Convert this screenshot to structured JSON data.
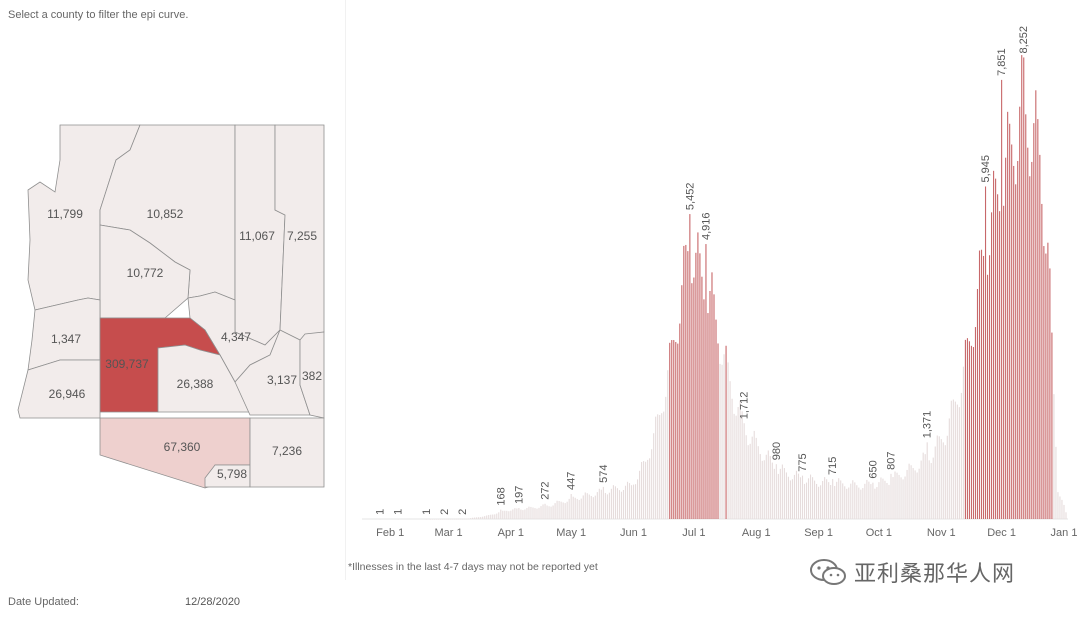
{
  "header": {
    "instruction": "Select a county to filter the epi curve."
  },
  "map": {
    "counties": [
      {
        "id": "mohave",
        "label": "11,799",
        "value": 11799
      },
      {
        "id": "coconino",
        "label": "10,852",
        "value": 10852
      },
      {
        "id": "navajo",
        "label": "11,067",
        "value": 11067
      },
      {
        "id": "apache",
        "label": "7,255",
        "value": 7255
      },
      {
        "id": "yavapai",
        "label": "10,772",
        "value": 10772
      },
      {
        "id": "gila",
        "label": "4,347",
        "value": 4347
      },
      {
        "id": "la-paz",
        "label": "1,347",
        "value": 1347
      },
      {
        "id": "maricopa",
        "label": "309,737",
        "value": 309737
      },
      {
        "id": "pinal",
        "label": "26,388",
        "value": 26388
      },
      {
        "id": "graham",
        "label": "3,137",
        "value": 3137
      },
      {
        "id": "greenlee",
        "label": "382",
        "value": 382
      },
      {
        "id": "yuma",
        "label": "26,946",
        "value": 26946
      },
      {
        "id": "pima",
        "label": "67,360",
        "value": 67360
      },
      {
        "id": "santa-cruz",
        "label": "5,798",
        "value": 5798
      },
      {
        "id": "cochise",
        "label": "7,236",
        "value": 7236
      }
    ],
    "colors": {
      "low": "#f2eceb",
      "mid": "#eed0ce",
      "high": "#c64d4d",
      "border": "#8f8f8f"
    }
  },
  "chart_data": {
    "type": "bar",
    "x_start": "2020-01-18",
    "x_end": "2021-01-03",
    "x_ticks": [
      "Feb 1",
      "Mar 1",
      "Apr 1",
      "May 1",
      "Jun 1",
      "Jul 1",
      "Aug 1",
      "Sep 1",
      "Oct 1",
      "Nov 1",
      "Dec 1",
      "Jan 1"
    ],
    "ylim": [
      0,
      8600
    ],
    "annotations": [
      {
        "date": "2020-01-27",
        "value": 1,
        "label": "1"
      },
      {
        "date": "2020-02-05",
        "value": 1,
        "label": "1"
      },
      {
        "date": "2020-02-19",
        "value": 1,
        "label": "1"
      },
      {
        "date": "2020-02-28",
        "value": 2,
        "label": "2"
      },
      {
        "date": "2020-03-08",
        "value": 2,
        "label": "2"
      },
      {
        "date": "2020-03-27",
        "value": 168,
        "label": "168"
      },
      {
        "date": "2020-04-05",
        "value": 197,
        "label": "197"
      },
      {
        "date": "2020-04-18",
        "value": 272,
        "label": "272"
      },
      {
        "date": "2020-05-01",
        "value": 447,
        "label": "447"
      },
      {
        "date": "2020-05-17",
        "value": 574,
        "label": "574"
      },
      {
        "date": "2020-06-29",
        "value": 5452,
        "label": "5,452"
      },
      {
        "date": "2020-07-07",
        "value": 4916,
        "label": "4,916"
      },
      {
        "date": "2020-07-26",
        "value": 1712,
        "label": "1,712"
      },
      {
        "date": "2020-08-11",
        "value": 980,
        "label": "980"
      },
      {
        "date": "2020-08-24",
        "value": 775,
        "label": "775"
      },
      {
        "date": "2020-09-08",
        "value": 715,
        "label": "715"
      },
      {
        "date": "2020-09-28",
        "value": 650,
        "label": "650"
      },
      {
        "date": "2020-10-07",
        "value": 807,
        "label": "807"
      },
      {
        "date": "2020-10-25",
        "value": 1371,
        "label": "1,371"
      },
      {
        "date": "2020-11-23",
        "value": 5945,
        "label": "5,945"
      },
      {
        "date": "2020-12-01",
        "value": 7851,
        "label": "7,851"
      },
      {
        "date": "2020-12-12",
        "value": 8252,
        "label": "8,252"
      }
    ],
    "curve_points": [
      [
        "2020-01-18",
        0
      ],
      [
        "2020-02-20",
        0
      ],
      [
        "2020-03-10",
        5
      ],
      [
        "2020-03-20",
        60
      ],
      [
        "2020-03-30",
        170
      ],
      [
        "2020-04-10",
        210
      ],
      [
        "2020-04-20",
        265
      ],
      [
        "2020-05-01",
        390
      ],
      [
        "2020-05-10",
        470
      ],
      [
        "2020-05-20",
        560
      ],
      [
        "2020-05-31",
        650
      ],
      [
        "2020-06-07",
        1100
      ],
      [
        "2020-06-14",
        2000
      ],
      [
        "2020-06-20",
        3200
      ],
      [
        "2020-06-25",
        4400
      ],
      [
        "2020-06-29",
        5400
      ],
      [
        "2020-07-04",
        4750
      ],
      [
        "2020-07-10",
        4200
      ],
      [
        "2020-07-16",
        3100
      ],
      [
        "2020-07-22",
        2200
      ],
      [
        "2020-07-28",
        1650
      ],
      [
        "2020-08-05",
        1250
      ],
      [
        "2020-08-12",
        960
      ],
      [
        "2020-08-20",
        830
      ],
      [
        "2020-09-01",
        720
      ],
      [
        "2020-09-10",
        700
      ],
      [
        "2020-09-20",
        650
      ],
      [
        "2020-09-30",
        680
      ],
      [
        "2020-10-08",
        790
      ],
      [
        "2020-10-18",
        980
      ],
      [
        "2020-10-27",
        1250
      ],
      [
        "2020-11-03",
        1650
      ],
      [
        "2020-11-10",
        2500
      ],
      [
        "2020-11-16",
        3600
      ],
      [
        "2020-11-23",
        5300
      ],
      [
        "2020-11-30",
        6400
      ],
      [
        "2020-12-06",
        7200
      ],
      [
        "2020-12-11",
        7900
      ],
      [
        "2020-12-16",
        7600
      ],
      [
        "2020-12-20",
        7000
      ],
      [
        "2020-12-24",
        5200
      ],
      [
        "2020-12-27",
        2400
      ],
      [
        "2020-12-29",
        600
      ],
      [
        "2021-01-03",
        0
      ]
    ],
    "bar_colors": {
      "low": "#e6dcdc",
      "high": "#c8686a",
      "threshold": 3000
    }
  },
  "footer": {
    "date_label": "Date Updated:",
    "date_value": "12/28/2020",
    "footnote": "*Illnesses in the last 4-7 days may not be reported yet"
  },
  "watermark": {
    "text": "亚利桑那华人网",
    "icon": "wechat-icon"
  }
}
